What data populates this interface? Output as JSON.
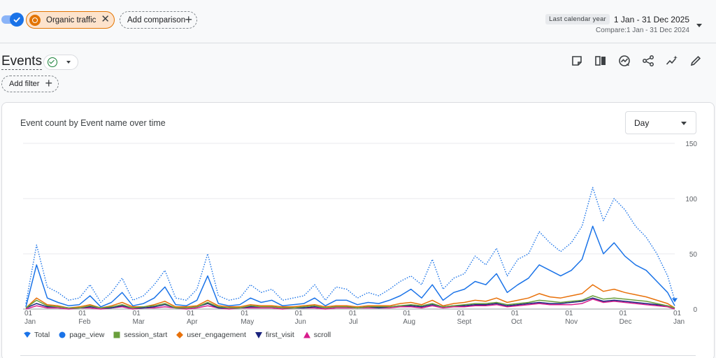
{
  "header": {
    "segment_chip_label": "Organic traffic",
    "add_comparison_label": "Add comparison",
    "date_pill": "Last calendar year",
    "date_range": "1 Jan - 31 Dec 2025",
    "compare_range": "Compare:1 Jan - 31 Dec 2024"
  },
  "page": {
    "title": "Events",
    "add_filter_label": "Add filter"
  },
  "toolbar": {
    "icons": [
      "annotation-icon",
      "compare-columns-icon",
      "insights-icon",
      "share-icon",
      "sparkle-trend-icon",
      "edit-icon"
    ]
  },
  "card": {
    "title": "Event count by Event name over time",
    "granularity_selected": "Day"
  },
  "chart_data": {
    "type": "line",
    "title": "Event count by Event name over time",
    "x_ticks": [
      {
        "day": "01",
        "month": "Jan"
      },
      {
        "day": "01",
        "month": "Feb"
      },
      {
        "day": "01",
        "month": "Mar"
      },
      {
        "day": "01",
        "month": "Apr"
      },
      {
        "day": "01",
        "month": "May"
      },
      {
        "day": "01",
        "month": "Jun"
      },
      {
        "day": "01",
        "month": "Jul"
      },
      {
        "day": "01",
        "month": "Aug"
      },
      {
        "day": "01",
        "month": "Sept"
      },
      {
        "day": "01",
        "month": "Oct"
      },
      {
        "day": "01",
        "month": "Nov"
      },
      {
        "day": "01",
        "month": "Dec"
      },
      {
        "day": "01",
        "month": "Jan"
      }
    ],
    "y_ticks": [
      "150",
      "100",
      "50",
      "0"
    ],
    "ylim": [
      0,
      150
    ],
    "y_axis_side": "right",
    "grid": true,
    "legend_position": "bottom-left",
    "x_days": [
      0,
      6,
      12,
      18,
      24,
      30,
      36,
      42,
      48,
      54,
      60,
      66,
      72,
      78,
      84,
      90,
      96,
      102,
      108,
      114,
      120,
      126,
      132,
      138,
      144,
      150,
      156,
      162,
      168,
      174,
      180,
      186,
      192,
      198,
      204,
      210,
      216,
      222,
      228,
      234,
      240,
      246,
      252,
      258,
      264,
      270,
      276,
      282,
      288,
      294,
      300,
      306,
      312,
      318,
      324,
      330,
      336,
      342,
      348,
      354,
      360,
      364
    ],
    "series": [
      {
        "name": "Total",
        "color": "#1a73e8",
        "style": "dotted",
        "values": [
          5,
          58,
          20,
          15,
          8,
          10,
          22,
          6,
          15,
          28,
          8,
          12,
          22,
          35,
          10,
          8,
          18,
          50,
          12,
          8,
          10,
          22,
          15,
          18,
          8,
          10,
          12,
          22,
          8,
          20,
          18,
          10,
          15,
          12,
          18,
          25,
          30,
          22,
          45,
          18,
          28,
          32,
          48,
          40,
          55,
          30,
          45,
          50,
          70,
          60,
          52,
          60,
          75,
          110,
          80,
          100,
          90,
          75,
          65,
          50,
          30,
          8
        ]
      },
      {
        "name": "page_view",
        "color": "#1a73e8",
        "style": "solid",
        "values": [
          2,
          40,
          10,
          6,
          3,
          4,
          12,
          2,
          6,
          15,
          3,
          5,
          10,
          20,
          4,
          3,
          8,
          30,
          5,
          3,
          4,
          10,
          6,
          8,
          3,
          4,
          5,
          10,
          3,
          8,
          8,
          4,
          6,
          5,
          8,
          12,
          18,
          10,
          22,
          8,
          15,
          18,
          25,
          22,
          32,
          15,
          22,
          28,
          40,
          35,
          30,
          35,
          45,
          75,
          50,
          60,
          48,
          40,
          35,
          25,
          15,
          3
        ]
      },
      {
        "name": "session_start",
        "color": "#6a9f3c",
        "style": "solid",
        "values": [
          1,
          8,
          3,
          2,
          1,
          1,
          3,
          1,
          2,
          4,
          1,
          2,
          3,
          5,
          1,
          1,
          2,
          6,
          2,
          1,
          1,
          3,
          2,
          2,
          1,
          1,
          2,
          3,
          1,
          2,
          2,
          1,
          2,
          2,
          2,
          3,
          4,
          3,
          5,
          2,
          3,
          4,
          5,
          5,
          6,
          4,
          5,
          6,
          8,
          7,
          6,
          7,
          8,
          12,
          9,
          10,
          9,
          8,
          7,
          5,
          3,
          1
        ]
      },
      {
        "name": "user_engagement",
        "color": "#e8710a",
        "style": "solid",
        "values": [
          1,
          10,
          4,
          3,
          1,
          2,
          4,
          1,
          3,
          6,
          2,
          2,
          4,
          7,
          2,
          2,
          3,
          8,
          3,
          2,
          2,
          4,
          3,
          3,
          2,
          2,
          3,
          4,
          2,
          3,
          3,
          2,
          3,
          3,
          3,
          5,
          6,
          4,
          8,
          3,
          5,
          6,
          8,
          7,
          10,
          6,
          8,
          10,
          14,
          11,
          10,
          12,
          14,
          22,
          16,
          18,
          15,
          13,
          11,
          8,
          5,
          1
        ]
      },
      {
        "name": "first_visit",
        "color": "#1a237e",
        "style": "solid",
        "values": [
          1,
          5,
          2,
          2,
          1,
          1,
          2,
          1,
          1,
          3,
          1,
          1,
          2,
          4,
          1,
          1,
          2,
          5,
          1,
          1,
          1,
          2,
          2,
          2,
          1,
          1,
          1,
          2,
          1,
          2,
          2,
          1,
          2,
          1,
          2,
          3,
          3,
          2,
          4,
          2,
          3,
          3,
          4,
          4,
          5,
          3,
          4,
          5,
          6,
          5,
          5,
          6,
          7,
          10,
          7,
          8,
          7,
          6,
          5,
          4,
          3,
          1
        ]
      },
      {
        "name": "scroll",
        "color": "#d81b8c",
        "style": "solid",
        "values": [
          0,
          3,
          1,
          1,
          0,
          1,
          1,
          0,
          1,
          2,
          0,
          1,
          1,
          2,
          1,
          0,
          1,
          3,
          1,
          0,
          1,
          1,
          1,
          1,
          0,
          1,
          1,
          1,
          0,
          1,
          1,
          1,
          1,
          1,
          1,
          2,
          2,
          1,
          3,
          1,
          2,
          2,
          3,
          3,
          4,
          2,
          3,
          4,
          5,
          4,
          4,
          4,
          5,
          9,
          6,
          7,
          6,
          5,
          4,
          3,
          2,
          0
        ]
      }
    ]
  }
}
